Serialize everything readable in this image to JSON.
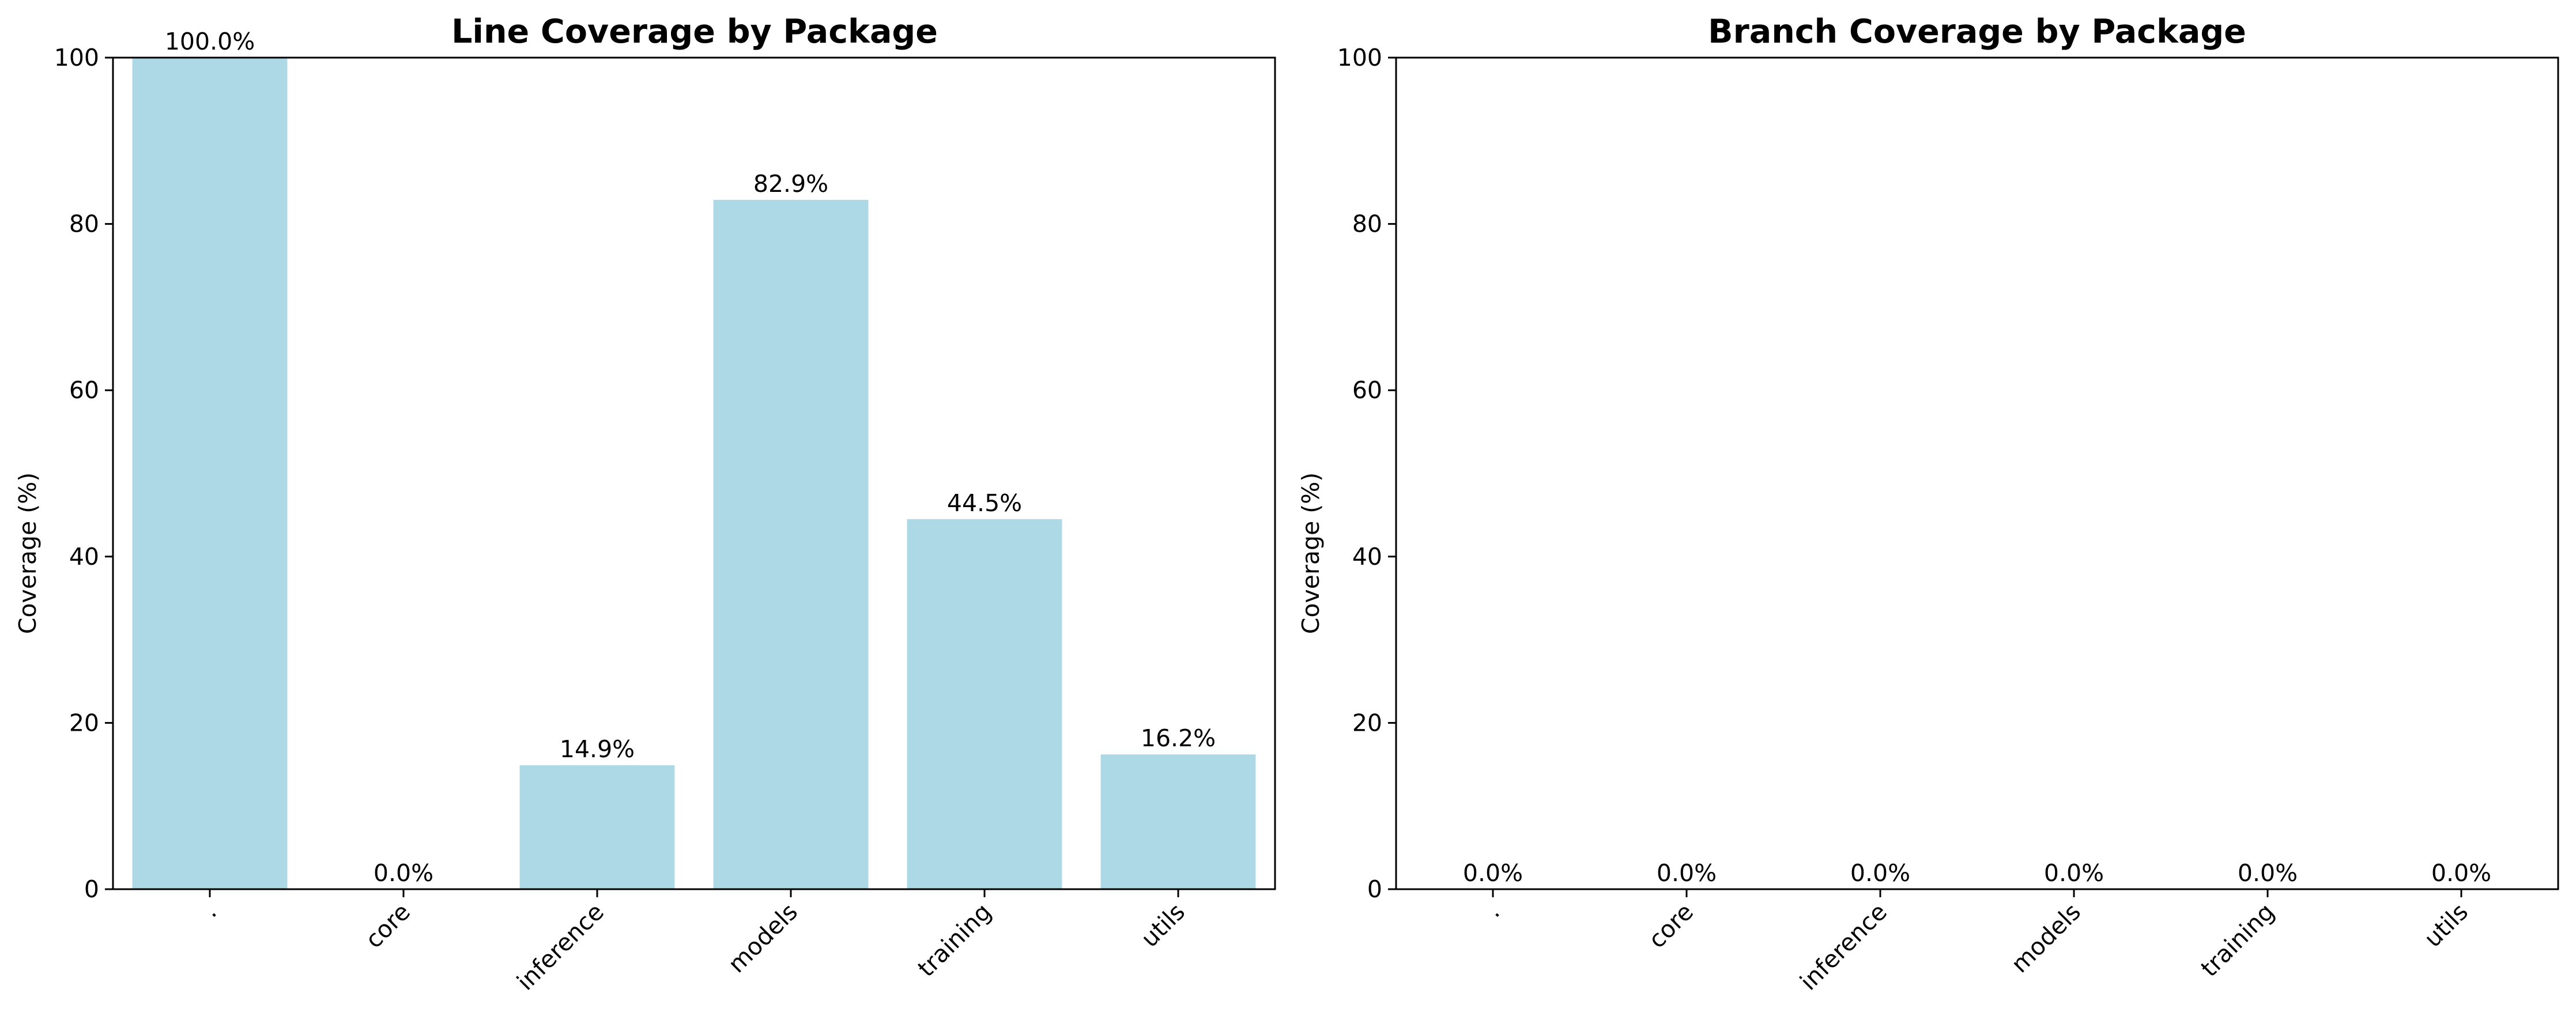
{
  "chart_data": [
    {
      "type": "bar",
      "title": "Line Coverage by Package",
      "xlabel": "",
      "ylabel": "Coverage (%)",
      "categories": [
        ".",
        "core",
        "inference",
        "models",
        "training",
        "utils"
      ],
      "values": [
        100.0,
        0.0,
        14.9,
        82.9,
        44.5,
        16.2
      ],
      "data_labels": [
        "100.0%",
        "0.0%",
        "14.9%",
        "82.9%",
        "44.5%",
        "16.2%"
      ],
      "ylim": [
        0,
        100
      ],
      "yticks": [
        "0",
        "20",
        "40",
        "60",
        "80",
        "100"
      ],
      "grid": false,
      "bar_color": "#add8e6"
    },
    {
      "type": "bar",
      "title": "Branch Coverage by Package",
      "xlabel": "",
      "ylabel": "Coverage (%)",
      "categories": [
        ".",
        "core",
        "inference",
        "models",
        "training",
        "utils"
      ],
      "values": [
        0.0,
        0.0,
        0.0,
        0.0,
        0.0,
        0.0
      ],
      "data_labels": [
        "0.0%",
        "0.0%",
        "0.0%",
        "0.0%",
        "0.0%",
        "0.0%"
      ],
      "ylim": [
        0,
        100
      ],
      "yticks": [
        "0",
        "20",
        "40",
        "60",
        "80",
        "100"
      ],
      "grid": false,
      "bar_color": "#add8e6"
    }
  ]
}
